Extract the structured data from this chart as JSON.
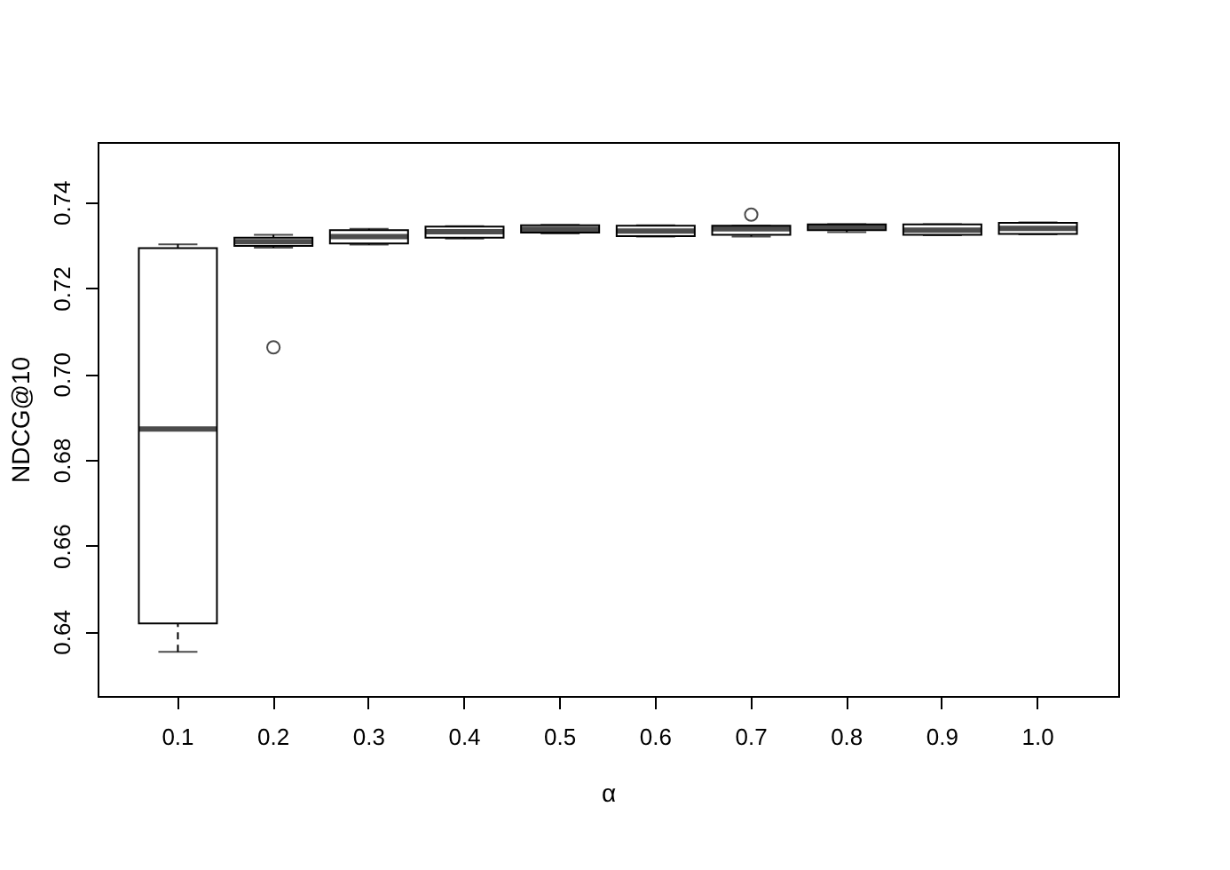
{
  "chart_data": {
    "type": "box",
    "xlabel": "α",
    "ylabel": "NDCG@10",
    "categories": [
      "0.1",
      "0.2",
      "0.3",
      "0.4",
      "0.5",
      "0.6",
      "0.7",
      "0.8",
      "0.9",
      "1.0"
    ],
    "boxes": [
      {
        "low": 0.6353,
        "q1": 0.6419,
        "median": 0.6872,
        "q3": 0.7293,
        "high": 0.7302
      },
      {
        "low": 0.7294,
        "q1": 0.7298,
        "median": 0.7308,
        "q3": 0.7317,
        "high": 0.7324,
        "outliers": [
          0.7062
        ]
      },
      {
        "low": 0.7301,
        "q1": 0.7304,
        "median": 0.732,
        "q3": 0.7335,
        "high": 0.7338
      },
      {
        "low": 0.7315,
        "q1": 0.7317,
        "median": 0.7331,
        "q3": 0.7343,
        "high": 0.7344
      },
      {
        "low": 0.7327,
        "q1": 0.7329,
        "median": 0.7337,
        "q3": 0.7346,
        "high": 0.7347
      },
      {
        "low": 0.732,
        "q1": 0.7321,
        "median": 0.7333,
        "q3": 0.7345,
        "high": 0.7346
      },
      {
        "low": 0.732,
        "q1": 0.7324,
        "median": 0.7338,
        "q3": 0.7345,
        "high": 0.7345,
        "outliers": [
          0.7371
        ]
      },
      {
        "low": 0.733,
        "q1": 0.7335,
        "median": 0.7342,
        "q3": 0.7348,
        "high": 0.7349
      },
      {
        "low": 0.7323,
        "q1": 0.7324,
        "median": 0.7335,
        "q3": 0.7348,
        "high": 0.7349
      },
      {
        "low": 0.7325,
        "q1": 0.7326,
        "median": 0.7339,
        "q3": 0.7352,
        "high": 0.7353
      }
    ],
    "ylim": [
      0.625,
      0.754
    ],
    "yticks": [
      {
        "value": 0.64,
        "label": "0.64"
      },
      {
        "value": 0.66,
        "label": "0.66"
      },
      {
        "value": 0.68,
        "label": "0.68"
      },
      {
        "value": 0.7,
        "label": "0.70"
      },
      {
        "value": 0.72,
        "label": "0.72"
      },
      {
        "value": 0.74,
        "label": "0.74"
      }
    ],
    "grid": false
  }
}
